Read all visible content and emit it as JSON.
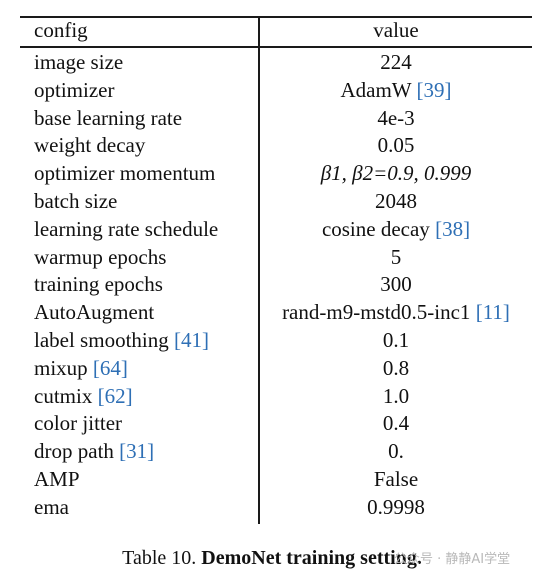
{
  "table": {
    "header": {
      "config": "config",
      "value": "value"
    },
    "rows": [
      {
        "config": "image size",
        "value": "224"
      },
      {
        "config": "optimizer",
        "value": "AdamW",
        "value_ref": "39"
      },
      {
        "config": "base learning rate",
        "value": "4e-3"
      },
      {
        "config": "weight decay",
        "value": "0.05"
      },
      {
        "config": "optimizer momentum",
        "value": "β1, β2=0.9, 0.999"
      },
      {
        "config": "batch size",
        "value": "2048"
      },
      {
        "config": "learning rate schedule",
        "value": "cosine decay",
        "value_ref": "38"
      },
      {
        "config": "warmup epochs",
        "value": "5"
      },
      {
        "config": "training epochs",
        "value": "300"
      },
      {
        "config": "AutoAugment",
        "value": "rand-m9-mstd0.5-inc1",
        "value_ref": "11"
      },
      {
        "config": "label smoothing",
        "config_ref": "41",
        "value": "0.1"
      },
      {
        "config": "mixup",
        "config_ref": "64",
        "value": "0.8"
      },
      {
        "config": "cutmix",
        "config_ref": "62",
        "value": "1.0"
      },
      {
        "config": "color jitter",
        "value": "0.4"
      },
      {
        "config": "drop path",
        "config_ref": "31",
        "value": "0."
      },
      {
        "config": "AMP",
        "value": "False"
      },
      {
        "config": "ema",
        "value": "0.9998"
      }
    ]
  },
  "caption": {
    "label": "Table 10.",
    "title": "DemoNet training setting."
  },
  "watermark": {
    "text": "公众号 · 静静AI学堂"
  },
  "colors": {
    "reference_link": "#2e6fb5",
    "text": "#111111"
  }
}
